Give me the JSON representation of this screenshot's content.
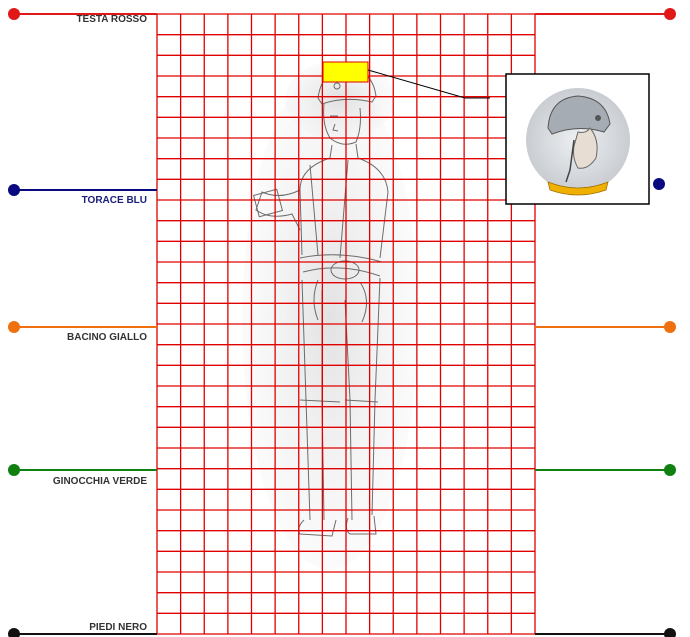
{
  "levels": [
    {
      "label": "TESTA ROSSO",
      "color": "#e01818"
    },
    {
      "label": "TORACE BLU",
      "color": "#0a0a80"
    },
    {
      "label": "BACINO GIALLO",
      "color": "#f07010"
    },
    {
      "label": "GINOCCHIA VERDE",
      "color": "#108010"
    },
    {
      "label": "PIEDI NERO",
      "color": "#111111"
    }
  ],
  "grid": {
    "color": "#e00000",
    "cols": 16,
    "rows": 30,
    "highlight_color": "#ffff00"
  },
  "inset": {
    "subject": "helmet-wearer-head",
    "collar_color": "#f0b000"
  }
}
